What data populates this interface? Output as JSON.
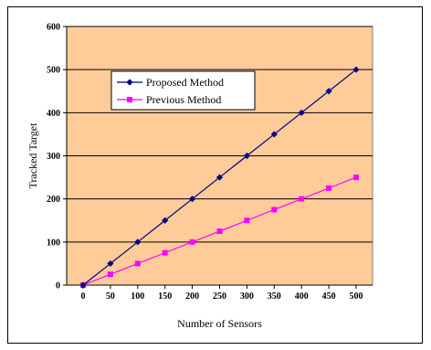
{
  "chart_data": {
    "type": "line",
    "title": "",
    "xlabel": "Number of Sensors",
    "ylabel": "Tracked Target",
    "x": [
      0,
      50,
      100,
      150,
      200,
      250,
      300,
      350,
      400,
      450,
      500
    ],
    "x_tick_labels": [
      "0",
      "50",
      "100",
      "150",
      "200",
      "250",
      "300",
      "350",
      "400",
      "450",
      "500"
    ],
    "y_tick_labels": [
      "0",
      "100",
      "200",
      "300",
      "400",
      "500",
      "600"
    ],
    "ylim": [
      0,
      600
    ],
    "grid": "horizontal",
    "background_color": "#FFCC99",
    "legend_position": "upper-left",
    "series": [
      {
        "name": "Proposed Method",
        "color": "#000080",
        "marker": "diamond",
        "values": [
          0,
          50,
          100,
          150,
          200,
          250,
          300,
          350,
          400,
          450,
          500
        ]
      },
      {
        "name": "Previous Method",
        "color": "#FF00FF",
        "marker": "square",
        "values": [
          0,
          25,
          50,
          75,
          100,
          125,
          150,
          175,
          200,
          225,
          250
        ]
      }
    ]
  }
}
